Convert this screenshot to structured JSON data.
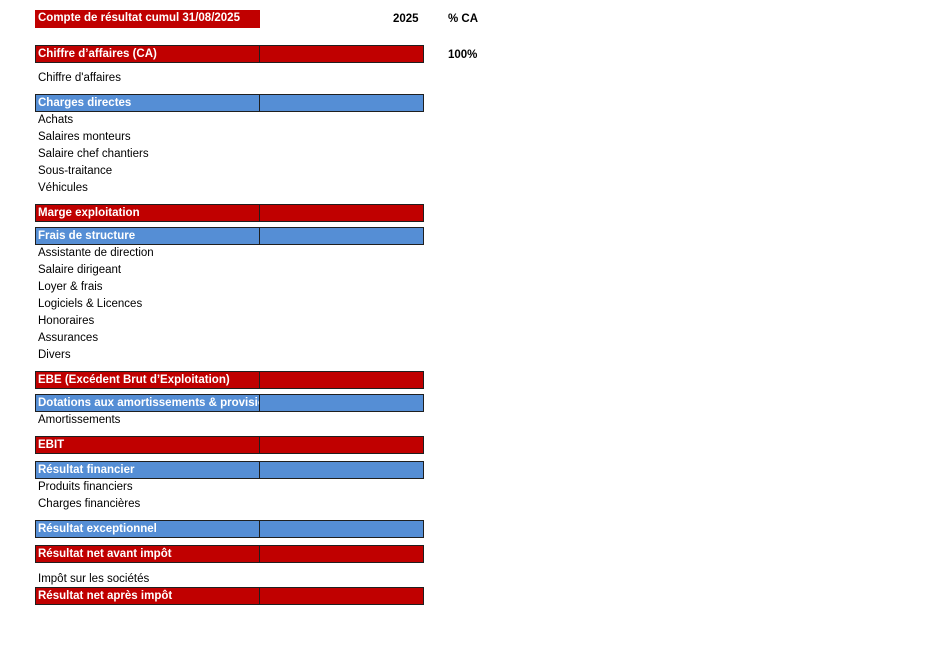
{
  "header": {
    "title": "Compte de résultat cumul 31/08/2025",
    "year": "2025",
    "pct_label": "% CA"
  },
  "ca": {
    "label": "Chiffre d’affaires (CA)",
    "pct": "100%",
    "items": [
      "Chiffre d'affaires"
    ]
  },
  "charges_directes": {
    "label": "Charges directes",
    "items": [
      "Achats",
      "Salaires monteurs",
      "Salaire chef chantiers",
      "Sous-traitance",
      "Véhicules"
    ]
  },
  "marge": {
    "label": "Marge exploitation"
  },
  "frais_structure": {
    "label": "Frais de structure",
    "items": [
      "Assistante de direction",
      "Salaire dirigeant",
      "Loyer & frais",
      "Logiciels & Licences",
      "Honoraires",
      "Assurances",
      "Divers"
    ]
  },
  "ebe": {
    "label": "EBE (Excédent Brut d’Exploitation)"
  },
  "dotations": {
    "label": "Dotations aux amortissements & provisions",
    "items": [
      "Amortissements"
    ]
  },
  "ebit": {
    "label": "EBIT"
  },
  "financier": {
    "label": "Résultat financier",
    "items": [
      "Produits financiers",
      "Charges financières"
    ]
  },
  "exceptionnel": {
    "label": "Résultat exceptionnel"
  },
  "net_avant": {
    "label": "Résultat net avant impôt",
    "items": [
      "Impôt sur les sociétés"
    ]
  },
  "net_apres": {
    "label": "Résultat net après impôt"
  }
}
